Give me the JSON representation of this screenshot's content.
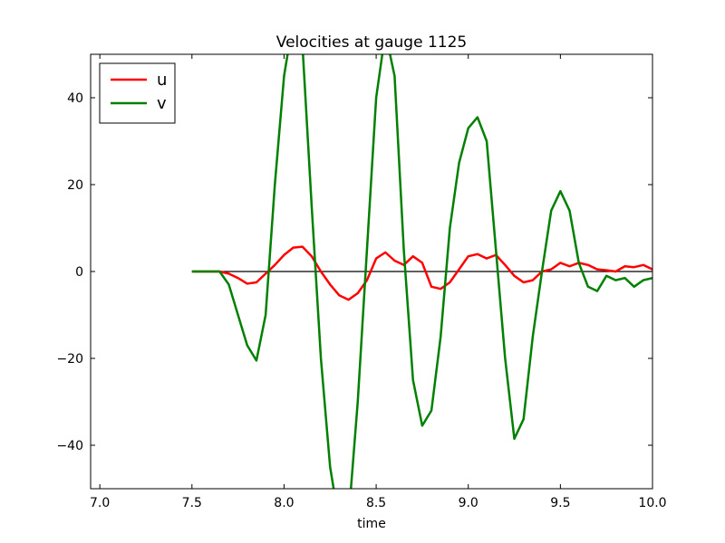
{
  "chart_data": {
    "type": "line",
    "title": "Velocities at gauge 1125",
    "xlabel": "time",
    "ylabel": "",
    "xlim": [
      6.95,
      10.0
    ],
    "ylim": [
      -50,
      50
    ],
    "xticks": [
      7.0,
      7.5,
      8.0,
      8.5,
      9.0,
      9.5,
      10.0
    ],
    "xtick_labels": [
      "7.0",
      "7.5",
      "8.0",
      "8.5",
      "9.0",
      "9.5",
      "10.0"
    ],
    "yticks": [
      -40,
      -20,
      0,
      20,
      40
    ],
    "ytick_labels": [
      "−40",
      "−20",
      "0",
      "20",
      "40"
    ],
    "legend_position": "top-left",
    "grid": false,
    "zero_line": {
      "y": 0,
      "x_range": [
        7.5,
        10.0
      ],
      "color": "#000000"
    },
    "series": [
      {
        "name": "u",
        "color": "#ff0000",
        "points": [
          [
            7.5,
            0
          ],
          [
            7.6,
            0
          ],
          [
            7.65,
            0
          ],
          [
            7.7,
            -0.5
          ],
          [
            7.75,
            -1.5
          ],
          [
            7.8,
            -2.8
          ],
          [
            7.85,
            -2.5
          ],
          [
            7.9,
            -0.5
          ],
          [
            7.95,
            1.5
          ],
          [
            8.0,
            3.8
          ],
          [
            8.05,
            5.5
          ],
          [
            8.1,
            5.7
          ],
          [
            8.15,
            3.5
          ],
          [
            8.2,
            0
          ],
          [
            8.25,
            -3.0
          ],
          [
            8.3,
            -5.5
          ],
          [
            8.35,
            -6.5
          ],
          [
            8.4,
            -5.0
          ],
          [
            8.45,
            -2.0
          ],
          [
            8.5,
            3.0
          ],
          [
            8.55,
            4.4
          ],
          [
            8.6,
            2.5
          ],
          [
            8.65,
            1.5
          ],
          [
            8.7,
            3.5
          ],
          [
            8.75,
            2.0
          ],
          [
            8.8,
            -3.5
          ],
          [
            8.85,
            -4.0
          ],
          [
            8.9,
            -2.5
          ],
          [
            8.95,
            0.5
          ],
          [
            9.0,
            3.5
          ],
          [
            9.05,
            4.0
          ],
          [
            9.1,
            3.0
          ],
          [
            9.15,
            3.8
          ],
          [
            9.2,
            1.5
          ],
          [
            9.25,
            -1.0
          ],
          [
            9.3,
            -2.5
          ],
          [
            9.35,
            -2.0
          ],
          [
            9.4,
            0
          ],
          [
            9.45,
            0.5
          ],
          [
            9.5,
            2.0
          ],
          [
            9.55,
            1.2
          ],
          [
            9.6,
            2.0
          ],
          [
            9.65,
            1.5
          ],
          [
            9.7,
            0.5
          ],
          [
            9.75,
            0.3
          ],
          [
            9.8,
            0
          ],
          [
            9.85,
            1.2
          ],
          [
            9.9,
            1.0
          ],
          [
            9.95,
            1.5
          ],
          [
            10.0,
            0.5
          ]
        ]
      },
      {
        "name": "v",
        "color": "#008000",
        "points": [
          [
            7.5,
            0
          ],
          [
            7.6,
            0
          ],
          [
            7.65,
            0
          ],
          [
            7.7,
            -3
          ],
          [
            7.75,
            -10
          ],
          [
            7.8,
            -17
          ],
          [
            7.85,
            -20.5
          ],
          [
            7.9,
            -10
          ],
          [
            7.95,
            20
          ],
          [
            8.0,
            45
          ],
          [
            8.05,
            58
          ],
          [
            8.1,
            52
          ],
          [
            8.15,
            15
          ],
          [
            8.2,
            -20
          ],
          [
            8.25,
            -45
          ],
          [
            8.3,
            -58
          ],
          [
            8.35,
            -57
          ],
          [
            8.4,
            -30
          ],
          [
            8.45,
            5
          ],
          [
            8.5,
            40
          ],
          [
            8.55,
            55
          ],
          [
            8.6,
            45
          ],
          [
            8.65,
            5
          ],
          [
            8.7,
            -25
          ],
          [
            8.75,
            -35.5
          ],
          [
            8.8,
            -32
          ],
          [
            8.85,
            -15
          ],
          [
            8.9,
            10
          ],
          [
            8.95,
            25
          ],
          [
            9.0,
            33
          ],
          [
            9.05,
            35.5
          ],
          [
            9.1,
            30
          ],
          [
            9.15,
            5
          ],
          [
            9.2,
            -20
          ],
          [
            9.25,
            -38.5
          ],
          [
            9.3,
            -34
          ],
          [
            9.35,
            -15
          ],
          [
            9.4,
            0
          ],
          [
            9.45,
            14
          ],
          [
            9.5,
            18.5
          ],
          [
            9.55,
            14
          ],
          [
            9.6,
            2
          ],
          [
            9.65,
            -3.5
          ],
          [
            9.7,
            -4.5
          ],
          [
            9.75,
            -1
          ],
          [
            9.8,
            -2
          ],
          [
            9.85,
            -1.5
          ],
          [
            9.9,
            -3.5
          ],
          [
            9.95,
            -2
          ],
          [
            10.0,
            -1.5
          ]
        ]
      }
    ]
  }
}
